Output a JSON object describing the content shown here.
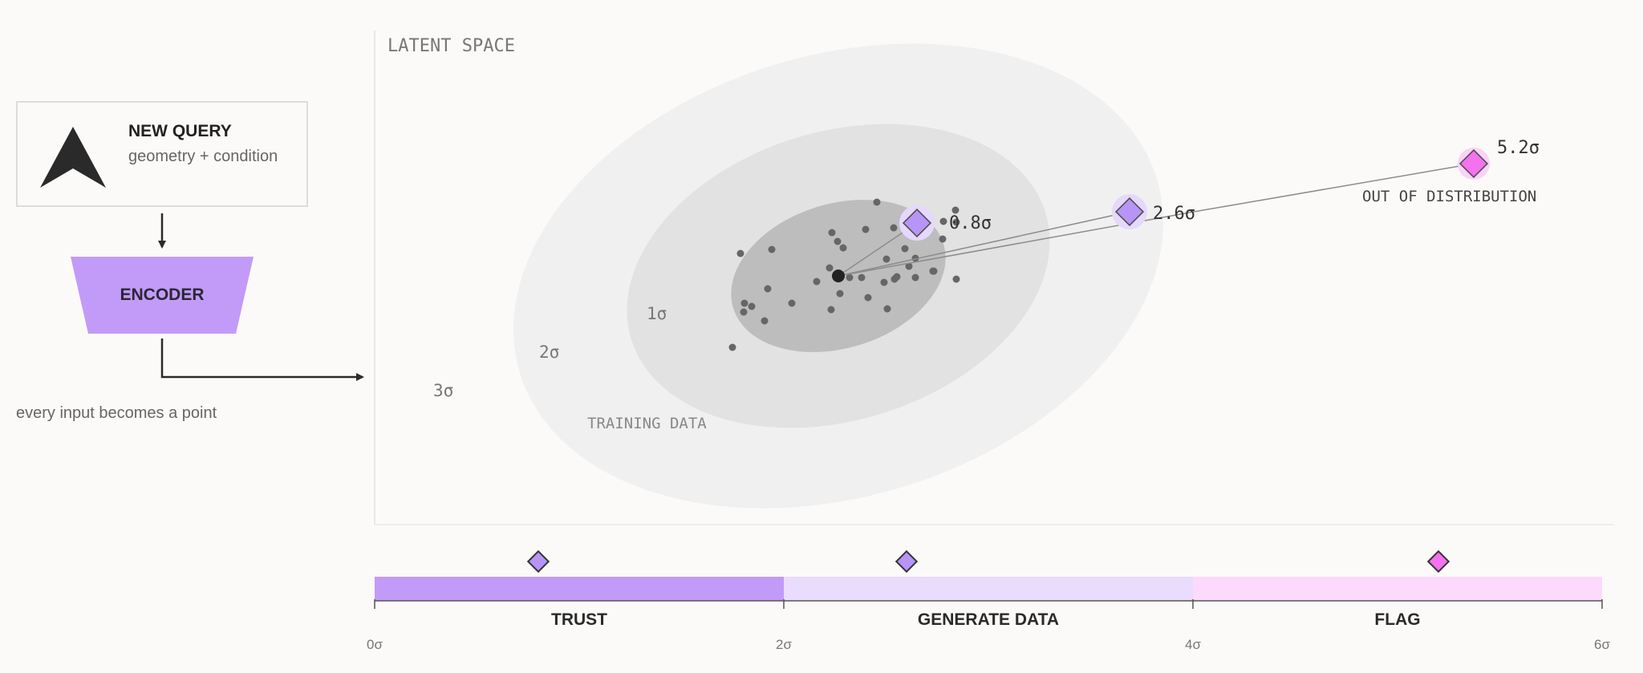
{
  "query": {
    "title": "NEW QUERY",
    "subtitle": "geometry + condition"
  },
  "encoder": {
    "label": "ENCODER"
  },
  "caption": "every input becomes a point",
  "latent": {
    "title": "LATENT SPACE",
    "ring_labels": [
      "1σ",
      "2σ",
      "3σ"
    ],
    "training_label": "TRAINING DATA",
    "ood_label": "OUT OF DISTRIBUTION",
    "queries": [
      {
        "sigma": 0.8,
        "label": "0.8σ",
        "color": "#b794f6"
      },
      {
        "sigma": 2.6,
        "label": "2.6σ",
        "color": "#b794f6"
      },
      {
        "sigma": 5.2,
        "label": "5.2σ",
        "color": "#f472f0"
      }
    ]
  },
  "scale": {
    "range": [
      0,
      6
    ],
    "ticks": [
      "0σ",
      "2σ",
      "4σ",
      "6σ"
    ],
    "zones": [
      {
        "label": "TRUST",
        "from": 0,
        "to": 2,
        "color": "#c29bf8"
      },
      {
        "label": "GENERATE DATA",
        "from": 2,
        "to": 4,
        "color": "#e9dcfd"
      },
      {
        "label": "FLAG",
        "from": 4,
        "to": 6,
        "color": "#fdd9fb"
      }
    ],
    "markers": [
      {
        "sigma": 0.8,
        "color": "#b794f6"
      },
      {
        "sigma": 2.6,
        "color": "#b794f6"
      },
      {
        "sigma": 5.2,
        "color": "#f472f0"
      }
    ]
  }
}
